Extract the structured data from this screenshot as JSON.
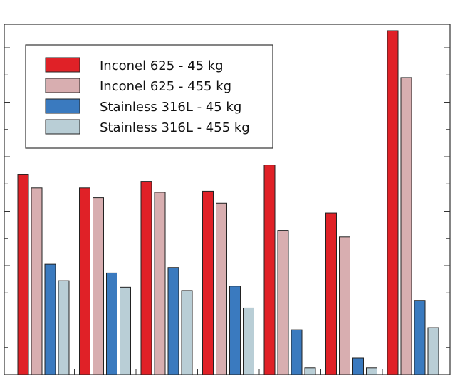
{
  "chart_data": {
    "type": "bar",
    "title": "",
    "xlabel": "",
    "ylabel": "",
    "ylim": [
      0,
      31.5
    ],
    "categories": [
      "",
      "",
      "",
      "",
      "",
      "",
      ""
    ],
    "legend": {
      "position": "top-left",
      "frame": true
    },
    "grid": false,
    "series": [
      {
        "name": "Inconel 625 - 45 kg",
        "color": "#e02127",
        "values": [
          18.3,
          17.1,
          17.7,
          16.8,
          19.2,
          14.8,
          31.5
        ]
      },
      {
        "name": "Inconel 625 - 455 kg",
        "color": "#d8aeb0",
        "values": [
          17.1,
          16.2,
          16.7,
          15.7,
          13.2,
          12.6,
          27.2
        ]
      },
      {
        "name": "Stainless 316L - 45 kg",
        "color": "#3a7abf",
        "values": [
          10.1,
          9.3,
          9.8,
          8.1,
          4.1,
          1.5,
          6.8
        ]
      },
      {
        "name": "Stainless 316L - 455 kg",
        "color": "#b9ced6",
        "values": [
          8.6,
          8.0,
          7.7,
          6.1,
          0.6,
          0.6,
          4.3
        ]
      }
    ]
  }
}
